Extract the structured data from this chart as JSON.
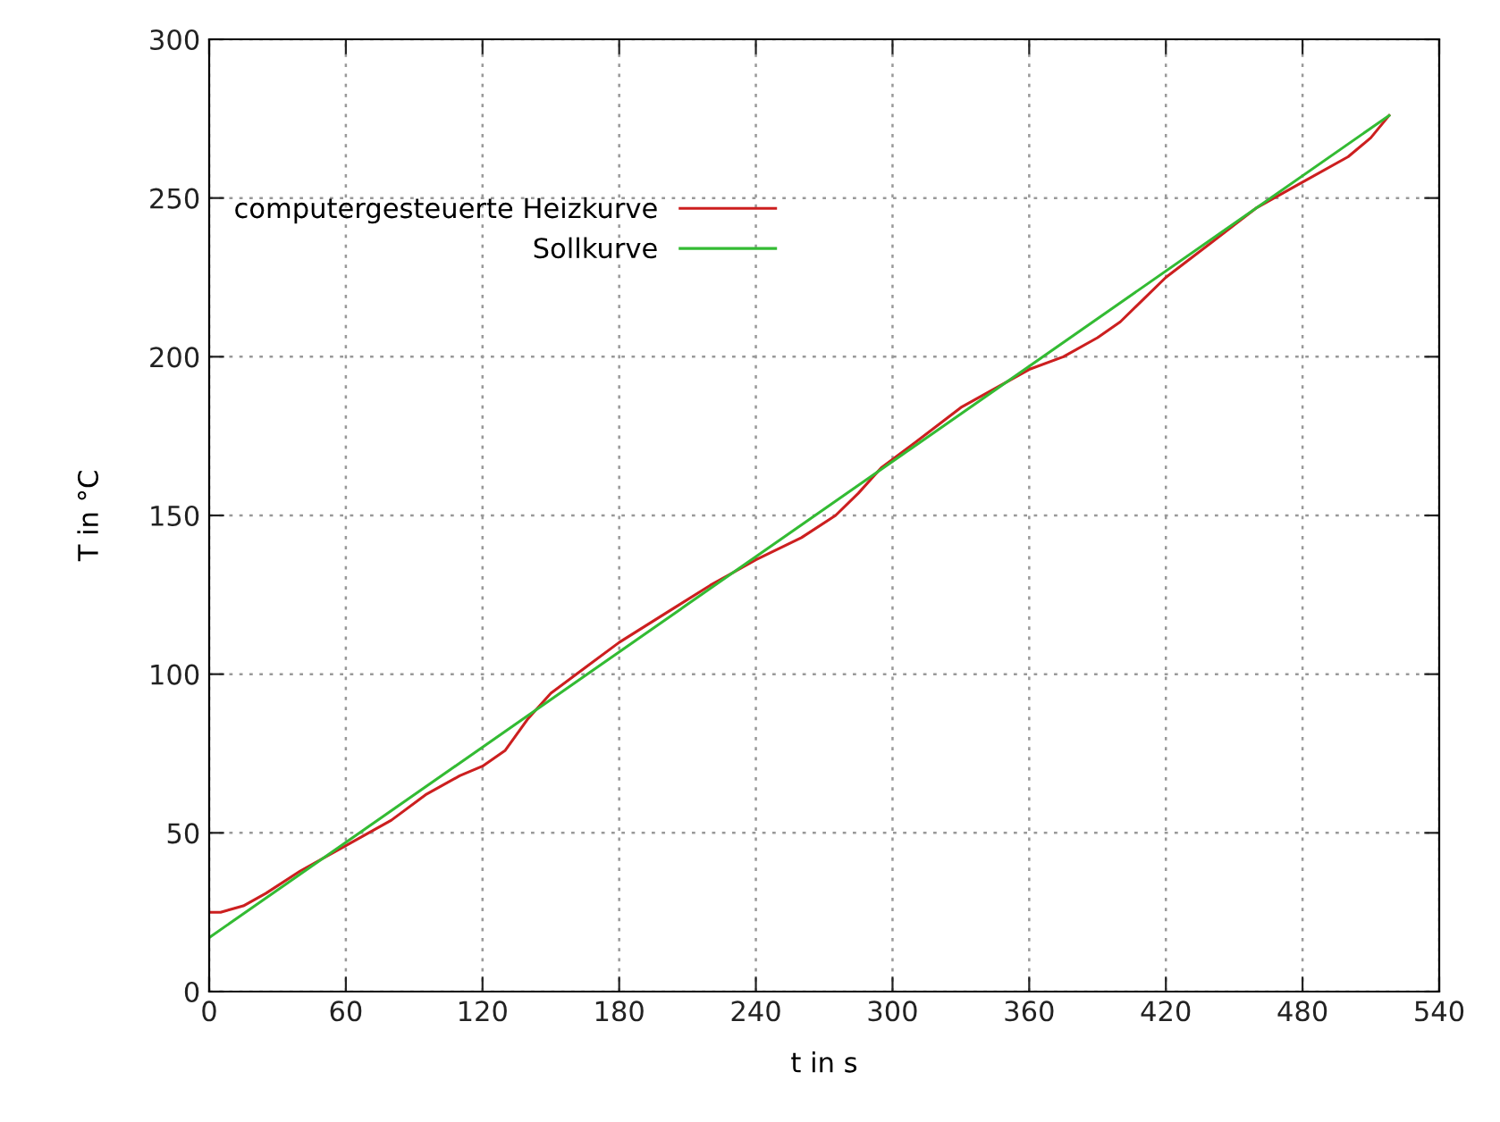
{
  "chart_data": {
    "type": "line",
    "xlabel": "t in s",
    "ylabel": "T in °C",
    "xlim": [
      0,
      540
    ],
    "xticks": [
      0,
      60,
      120,
      180,
      240,
      300,
      360,
      420,
      480,
      540
    ],
    "ylim": [
      0,
      300
    ],
    "yticks": [
      0,
      50,
      100,
      150,
      200,
      250,
      300
    ],
    "grid": true,
    "legend": "top left",
    "marker": "none",
    "line_style": "solid",
    "series": [
      {
        "name": "computergesteuerte Heizkurve",
        "color": "#cc1f1f",
        "x": [
          0,
          5,
          15,
          25,
          40,
          60,
          80,
          95,
          110,
          120,
          130,
          140,
          150,
          165,
          180,
          200,
          220,
          240,
          260,
          275,
          285,
          295,
          310,
          330,
          345,
          360,
          375,
          390,
          400,
          410,
          420,
          440,
          460,
          480,
          500,
          510,
          518
        ],
        "values": [
          25,
          25,
          27,
          31,
          38,
          46,
          54,
          62,
          68,
          71,
          76,
          86,
          94,
          102,
          110,
          119,
          128,
          136,
          143,
          150,
          157,
          165,
          173,
          184,
          190,
          196,
          200,
          206,
          211,
          218,
          225,
          236,
          247,
          255,
          263,
          269,
          276
        ]
      },
      {
        "name": "Sollkurve",
        "color": "#33bb33",
        "x": [
          0,
          518
        ],
        "values": [
          17,
          276
        ]
      }
    ]
  }
}
